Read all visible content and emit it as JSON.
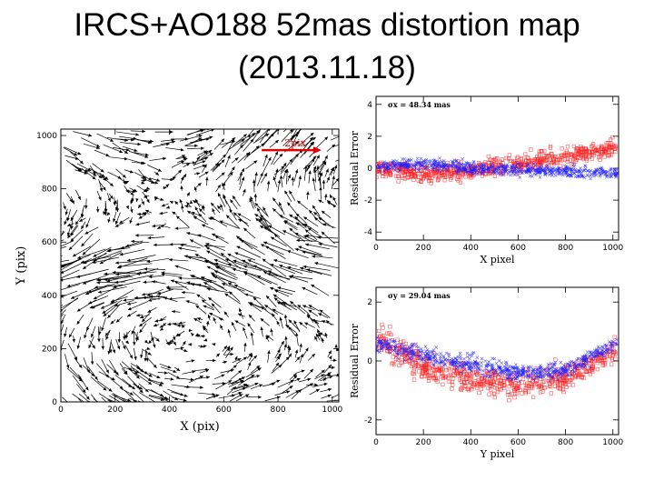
{
  "slide": {
    "title_line1": "IRCS+AO188 52mas distortion map",
    "title_line2": "(2013.11.18)"
  },
  "chart_data": [
    {
      "type": "quiver",
      "title": "",
      "xlabel": "X (pix)",
      "ylabel": "Y (pix)",
      "xlim": [
        0,
        1024
      ],
      "ylim": [
        0,
        1024
      ],
      "xticks": [
        0,
        200,
        400,
        600,
        800,
        1000
      ],
      "yticks": [
        0,
        200,
        400,
        600,
        800,
        1000
      ],
      "scale_label": "2pix",
      "scale_color": "#e00000",
      "vector_color": "#000000",
      "field_description": "dense vector field; long leftward vectors around Y~450-550 near left edge, swirl at upper-left and lower-right"
    },
    {
      "type": "scatter",
      "xlabel": "X pixel",
      "ylabel": "Residual Error",
      "xlim": [
        0,
        1024
      ],
      "ylim": [
        -4.5,
        4.5
      ],
      "xticks": [
        0,
        200,
        400,
        600,
        800,
        1000
      ],
      "yticks": [
        -4,
        -2,
        0,
        2,
        4
      ],
      "annotation": "σx = 48.34 mas",
      "series": [
        {
          "name": "",
          "marker": "square",
          "color": "#ff2020",
          "trend": [
            [
              0,
              0.0
            ],
            [
              200,
              -0.4
            ],
            [
              400,
              -0.1
            ],
            [
              600,
              0.3
            ],
            [
              800,
              0.7
            ],
            [
              1000,
              1.3
            ]
          ]
        },
        {
          "name": "",
          "marker": "cross",
          "color": "#2020ff",
          "trend": [
            [
              0,
              0.1
            ],
            [
              200,
              0.3
            ],
            [
              400,
              0.0
            ],
            [
              600,
              -0.1
            ],
            [
              800,
              -0.2
            ],
            [
              1000,
              -0.3
            ]
          ]
        }
      ]
    },
    {
      "type": "scatter",
      "xlabel": "Y pixel",
      "ylabel": "Residual Error",
      "xlim": [
        0,
        1024
      ],
      "ylim": [
        -2.5,
        2.5
      ],
      "xticks": [
        0,
        200,
        400,
        600,
        800,
        1000
      ],
      "yticks": [
        -2,
        0,
        2
      ],
      "annotation": "σy = 29.04 mas",
      "series": [
        {
          "name": "",
          "marker": "square",
          "color": "#ff2020",
          "trend": [
            [
              0,
              0.8
            ],
            [
              200,
              -0.2
            ],
            [
              400,
              -0.6
            ],
            [
              600,
              -0.8
            ],
            [
              800,
              -0.6
            ],
            [
              1000,
              0.3
            ]
          ]
        },
        {
          "name": "",
          "marker": "cross",
          "color": "#2020ff",
          "trend": [
            [
              0,
              0.6
            ],
            [
              200,
              0.2
            ],
            [
              400,
              -0.1
            ],
            [
              600,
              -0.4
            ],
            [
              800,
              -0.3
            ],
            [
              1000,
              0.5
            ]
          ]
        }
      ]
    }
  ]
}
